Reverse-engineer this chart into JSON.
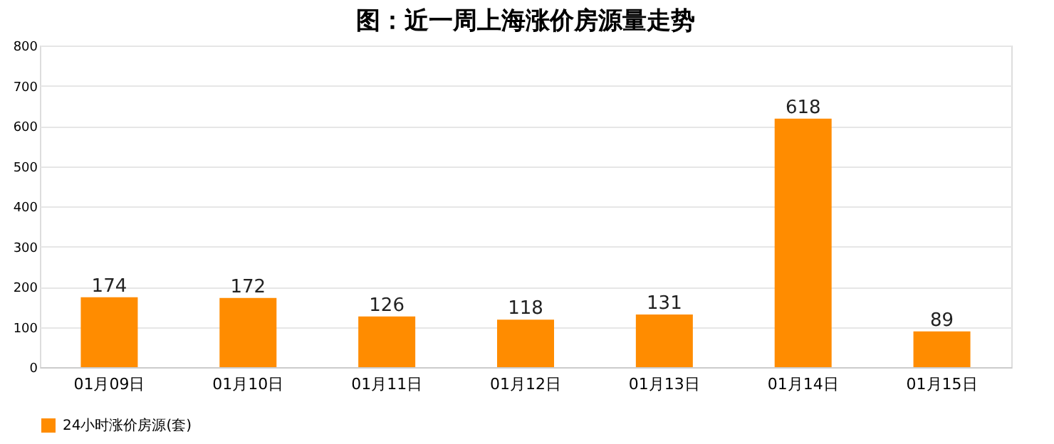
{
  "chart_data": {
    "type": "bar",
    "title": "图：近一周上海涨价房源量走势",
    "categories": [
      "01月09日",
      "01月10日",
      "01月11日",
      "01月12日",
      "01月13日",
      "01月14日",
      "01月15日"
    ],
    "series": [
      {
        "name": "24小时涨价房源(套)",
        "color": "#ff8c00",
        "values": [
          174,
          172,
          126,
          118,
          131,
          618,
          89
        ]
      }
    ],
    "ylim": [
      0,
      800
    ],
    "yticks": [
      0,
      100,
      200,
      300,
      400,
      500,
      600,
      700,
      800
    ],
    "grid": "y",
    "legend": "bottom",
    "data_labels": true
  }
}
